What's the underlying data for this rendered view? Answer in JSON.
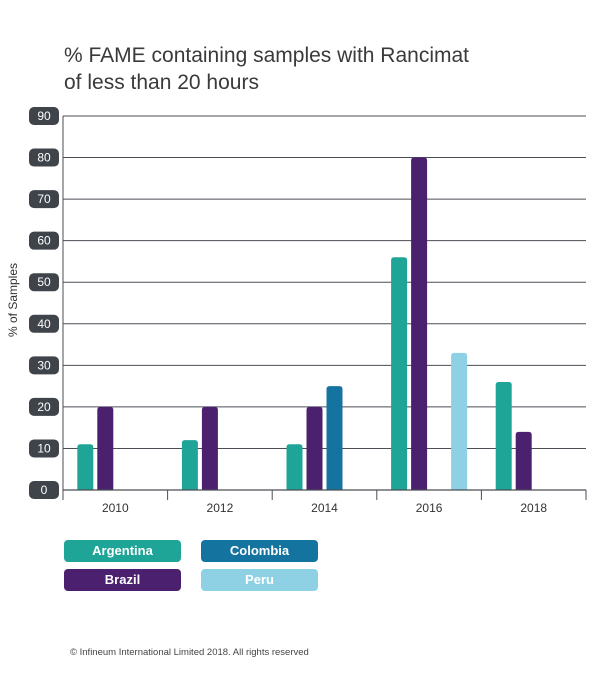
{
  "title_lines": [
    "% FAME containing samples with Rancimat",
    "of less than 20 hours"
  ],
  "copyright": "© Infineum International Limited 2018. All rights reserved",
  "chart_data": {
    "type": "bar",
    "title": "% FAME containing samples with Rancimat of less than 20 hours",
    "xlabel": "",
    "ylabel": "% of Samples",
    "ylim": [
      0,
      90
    ],
    "yticks": [
      0,
      10,
      20,
      30,
      40,
      50,
      60,
      70,
      80,
      90
    ],
    "categories": [
      "2010",
      "2012",
      "2014",
      "2016",
      "2018"
    ],
    "grid": true,
    "legend_placement": "bottom-left",
    "series": [
      {
        "name": "Argentina",
        "color": "#1fa597",
        "values": [
          11,
          12,
          11,
          56,
          26
        ]
      },
      {
        "name": "Brazil",
        "color": "#4b206e",
        "values": [
          20,
          20,
          20,
          80,
          14
        ]
      },
      {
        "name": "Colombia",
        "color": "#1573a0",
        "values": [
          null,
          null,
          25,
          null,
          null
        ]
      },
      {
        "name": "Peru",
        "color": "#8fd1e4",
        "values": [
          null,
          null,
          null,
          33,
          null
        ]
      }
    ],
    "legend": [
      {
        "name": "Argentina",
        "color": "#1fa597"
      },
      {
        "name": "Colombia",
        "color": "#1573a0"
      },
      {
        "name": "Brazil",
        "color": "#4b206e"
      },
      {
        "name": "Peru",
        "color": "#8fd1e4"
      }
    ]
  }
}
